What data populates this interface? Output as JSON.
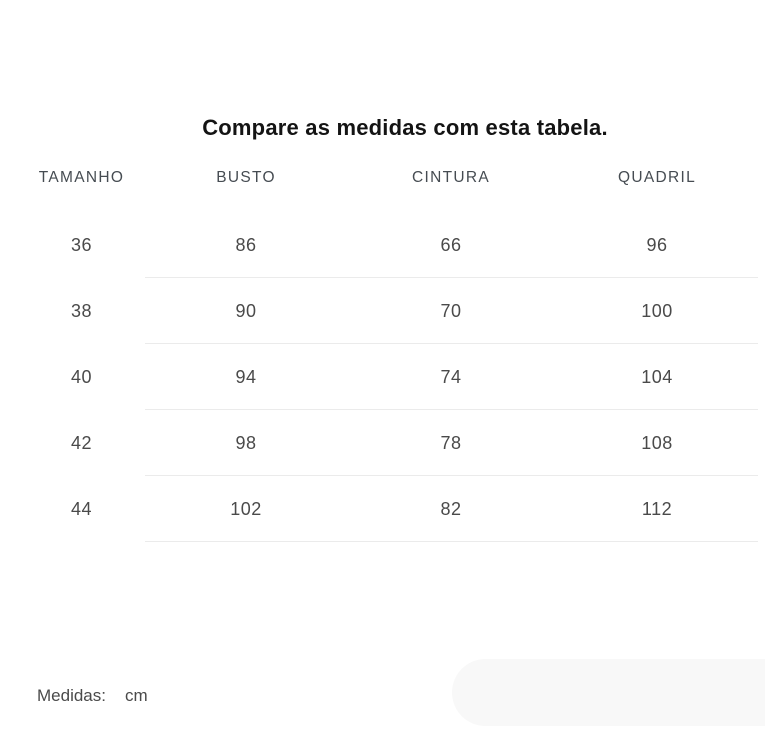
{
  "title": "Compare as medidas com esta tabela.",
  "table": {
    "headers": [
      "TAMANHO",
      "BUSTO",
      "CINTURA",
      "QUADRIL"
    ],
    "rows": [
      [
        "36",
        "86",
        "66",
        "96"
      ],
      [
        "38",
        "90",
        "70",
        "100"
      ],
      [
        "40",
        "94",
        "74",
        "104"
      ],
      [
        "42",
        "98",
        "78",
        "108"
      ],
      [
        "44",
        "102",
        "82",
        "112"
      ]
    ]
  },
  "footer": {
    "label": "Medidas:",
    "value": "cm"
  },
  "colors": {
    "title_text": "#141414",
    "header_text": "#464c52",
    "cell_text": "#4a4a4a",
    "divider": "#ebebeb",
    "pill_background": "#f8f8f8"
  }
}
